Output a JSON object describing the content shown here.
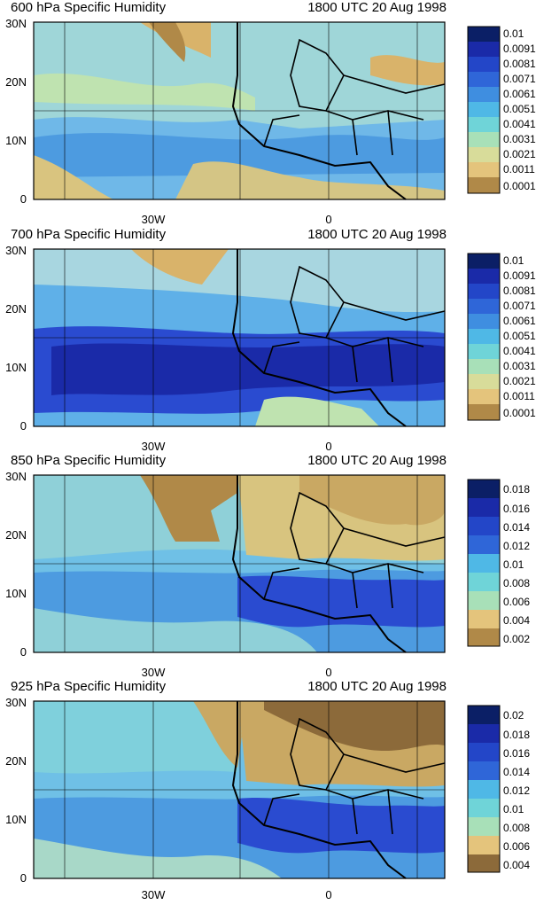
{
  "panels": [
    {
      "title": "600 hPa Specific Humidity",
      "time": "1800 UTC 20 Aug 1998",
      "colorbar": [
        "0.01",
        "0.0091",
        "0.0081",
        "0.0071",
        "0.0061",
        "0.0051",
        "0.0041",
        "0.0031",
        "0.0021",
        "0.0011",
        "0.0001"
      ],
      "lat_labels": [
        "30N",
        "20N",
        "10N",
        "0"
      ],
      "lon_labels": [
        "30W",
        "0"
      ]
    },
    {
      "title": "700 hPa Specific Humidity",
      "time": "1800 UTC 20 Aug 1998",
      "colorbar": [
        "0.01",
        "0.0091",
        "0.0081",
        "0.0071",
        "0.0061",
        "0.0051",
        "0.0041",
        "0.0031",
        "0.0021",
        "0.0011",
        "0.0001"
      ],
      "lat_labels": [
        "30N",
        "20N",
        "10N",
        "0"
      ],
      "lon_labels": [
        "30W",
        "0"
      ]
    },
    {
      "title": "850 hPa Specific Humidity",
      "time": "1800 UTC 20 Aug 1998",
      "colorbar": [
        "0.018",
        "0.016",
        "0.014",
        "0.012",
        "0.01",
        "0.008",
        "0.006",
        "0.004",
        "0.002"
      ],
      "lat_labels": [
        "30N",
        "20N",
        "10N",
        "0"
      ],
      "lon_labels": [
        "30W",
        "0"
      ]
    },
    {
      "title": "925 hPa Specific Humidity",
      "time": "1800 UTC 20 Aug 1998",
      "colorbar": [
        "0.02",
        "0.018",
        "0.016",
        "0.014",
        "0.012",
        "0.01",
        "0.008",
        "0.006",
        "0.004"
      ],
      "lat_labels": [
        "30N",
        "20N",
        "10N",
        "0"
      ],
      "lon_labels": [
        "30W",
        "0"
      ]
    }
  ],
  "colors": {
    "dry": "#8c6a3a",
    "tan": "#d9b36a",
    "mid": "#bfe0a8",
    "cyan": "#4fc8e0",
    "blue": "#2f7fd8",
    "deep": "#1a2aa8",
    "navy": "#0b1f66",
    "coast": "#000000"
  }
}
